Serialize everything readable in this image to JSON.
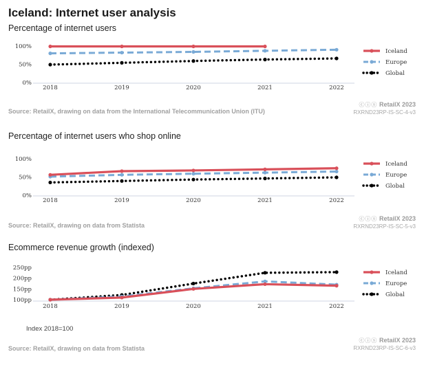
{
  "page": {
    "title": "Iceland: Internet user analysis",
    "note": "Index 2018=100"
  },
  "colors": {
    "iceland": "#d9505a",
    "europe": "#7aaad6",
    "global": "#000000"
  },
  "panels": [
    {
      "brand_name": "RetailX 2023",
      "brand_cc": "ⓒⓘⓢ",
      "brand_id": "RXRND23RP-IS-SC-4-v3",
      "source": "Source: RetailX, drawing on data from the International Telecommunication Union (ITU)"
    },
    {
      "brand_name": "RetailX 2023",
      "brand_cc": "ⓒⓘⓢ",
      "brand_id": "RXRND23RP-IS-SC-5-v3",
      "source": "Source: RetailX, drawing on data from Statista"
    },
    {
      "brand_name": "RetailX 2023",
      "brand_cc": "ⓒⓘⓢ",
      "brand_id": "RXRND23RP-IS-SC-6-v3",
      "source": "Source: RetailX, drawing on data from Statista"
    }
  ],
  "chart_data": [
    {
      "type": "line",
      "title": "Percentage of internet users",
      "x": [
        "2018",
        "2019",
        "2020",
        "2021",
        "2022"
      ],
      "ylim": [
        0,
        100
      ],
      "yticks": [
        0,
        50,
        100
      ],
      "ytick_labels": [
        "0%",
        "50%",
        "100%"
      ],
      "grid": false,
      "legend": "right",
      "series": [
        {
          "name": "Iceland",
          "key": "iceland",
          "style": "solid",
          "values": [
            99,
            99,
            99,
            99,
            null
          ]
        },
        {
          "name": "Europe",
          "key": "europe",
          "style": "dashed",
          "values": [
            80,
            82,
            84,
            87,
            90
          ]
        },
        {
          "name": "Global",
          "key": "global",
          "style": "dotted",
          "values": [
            49,
            54,
            59,
            63,
            66
          ]
        }
      ]
    },
    {
      "type": "line",
      "title": "Percentage of internet users who shop online",
      "x": [
        "2018",
        "2019",
        "2020",
        "2021",
        "2022"
      ],
      "ylim": [
        0,
        100
      ],
      "yticks": [
        0,
        50,
        100
      ],
      "ytick_labels": [
        "0%",
        "50%",
        "100%"
      ],
      "grid": false,
      "legend": "right",
      "series": [
        {
          "name": "Iceland",
          "key": "iceland",
          "style": "solid",
          "values": [
            56,
            66,
            68,
            71,
            74
          ]
        },
        {
          "name": "Europe",
          "key": "europe",
          "style": "dashed",
          "values": [
            51,
            56,
            59,
            62,
            65
          ]
        },
        {
          "name": "Global",
          "key": "global",
          "style": "dotted",
          "values": [
            35,
            39,
            43,
            46,
            49
          ]
        }
      ]
    },
    {
      "type": "line",
      "title": "Ecommerce revenue growth (indexed)",
      "x": [
        "2018",
        "2019",
        "2020",
        "2021",
        "2022"
      ],
      "ylim": [
        100,
        250
      ],
      "yticks": [
        100,
        150,
        200,
        250
      ],
      "ytick_labels": [
        "100pp",
        "150pp",
        "200pp",
        "250pp"
      ],
      "grid": false,
      "legend": "right",
      "series": [
        {
          "name": "Iceland",
          "key": "iceland",
          "style": "solid",
          "values": [
            100,
            110,
            150,
            172,
            165
          ]
        },
        {
          "name": "Europe",
          "key": "europe",
          "style": "dashed",
          "values": [
            100,
            115,
            153,
            185,
            170
          ]
        },
        {
          "name": "Global",
          "key": "global",
          "style": "dotted",
          "values": [
            100,
            122,
            175,
            225,
            228
          ]
        }
      ]
    }
  ]
}
